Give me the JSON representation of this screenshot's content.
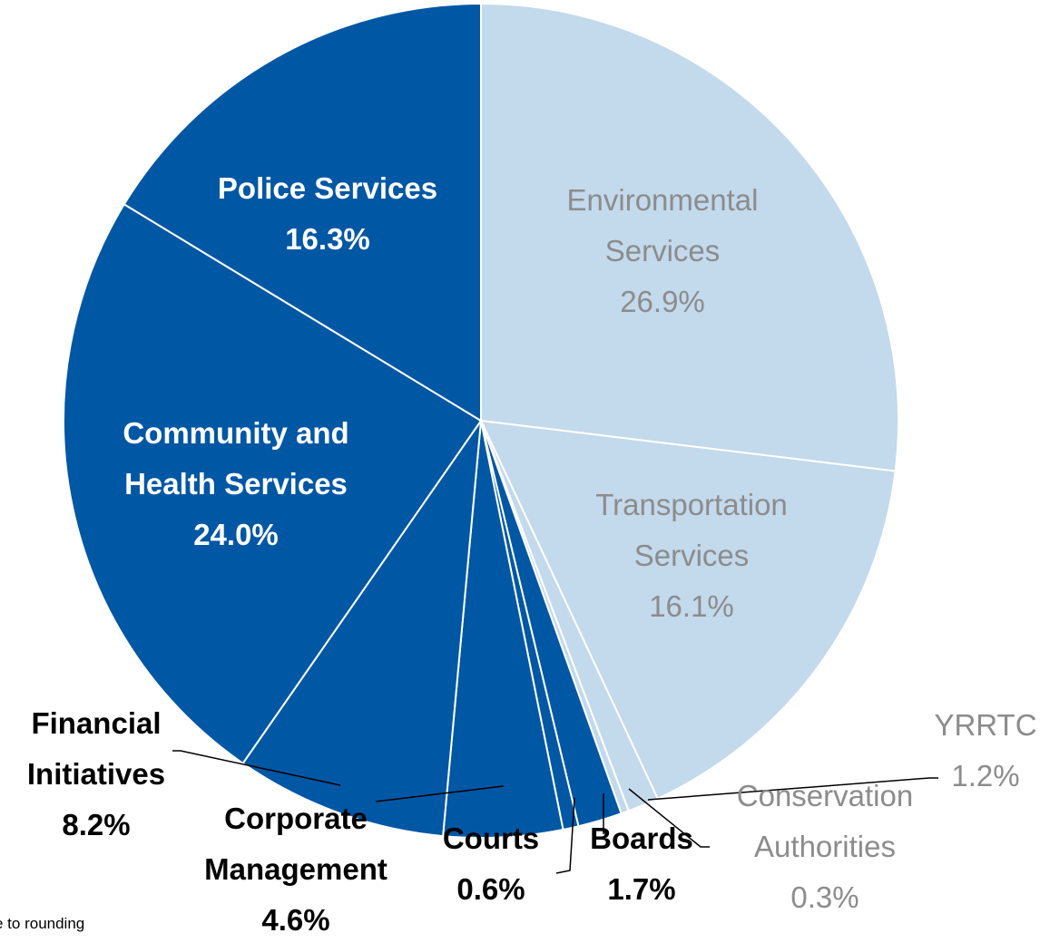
{
  "chart_data": {
    "type": "pie",
    "slices": [
      {
        "label": "Environmental Services",
        "value": 26.9,
        "display": "26.9%",
        "color": "#c3d9ec"
      },
      {
        "label": "Transportation Services",
        "value": 16.1,
        "display": "16.1%",
        "color": "#c3d9ec"
      },
      {
        "label": "YRRTC",
        "value": 1.2,
        "display": "1.2%",
        "color": "#c3d9ec"
      },
      {
        "label": "Conservation Authorities",
        "value": 0.3,
        "display": "0.3%",
        "color": "#c3d9ec"
      },
      {
        "label": "Boards",
        "value": 1.7,
        "display": "1.7%",
        "color": "#0057a4"
      },
      {
        "label": "Courts",
        "value": 0.6,
        "display": "0.6%",
        "color": "#0057a4"
      },
      {
        "label": "Corporate Management",
        "value": 4.6,
        "display": "4.6%",
        "color": "#0057a4"
      },
      {
        "label": "Financial Initiatives",
        "value": 8.2,
        "display": "8.2%",
        "color": "#0057a4"
      },
      {
        "label": "Community and Health Services",
        "value": 24.0,
        "display": "24.0%",
        "color": "#0057a4"
      },
      {
        "label": "Police Services",
        "value": 16.3,
        "display": "16.3%",
        "color": "#0057a4"
      }
    ],
    "label_lines": [
      [
        "Environmental",
        "Services",
        "26.9%"
      ],
      [
        "Transportation",
        "Services",
        "16.1%"
      ],
      [
        "YRRTC",
        "1.2%"
      ],
      [
        "Conservation",
        "Authorities",
        "0.3%"
      ],
      [
        "Boards",
        "1.7%"
      ],
      [
        "Courts",
        "0.6%"
      ],
      [
        "Corporate",
        "Management",
        "4.6%"
      ],
      [
        "Financial",
        "Initiatives",
        "8.2%"
      ],
      [
        "Community and",
        "Health Services",
        "24.0%"
      ],
      [
        "Police Services",
        "16.3%"
      ]
    ]
  },
  "footnote": "e to rounding",
  "colors": {
    "dark": "#0057a4",
    "light": "#c3d9ec",
    "light_text": "#8c8c8c"
  }
}
